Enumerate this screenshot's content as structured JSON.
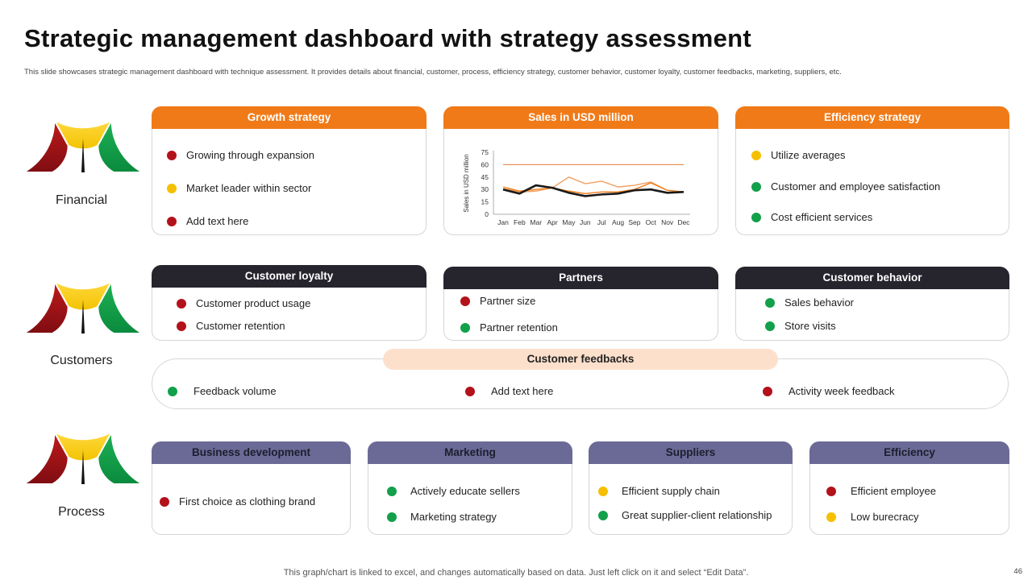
{
  "page": {
    "title": "Strategic management dashboard with strategy assessment",
    "subtitle": "This slide showcases strategic management dashboard with technique assessment. It provides details about financial, customer, process, efficiency strategy, customer behavior, customer loyalty, customer feedbacks, marketing, suppliers, etc.",
    "footer": "This graph/chart is linked to excel,  and changes automatically based on data. Just left click on it and select “Edit Data”.",
    "page_number": "46"
  },
  "colors": {
    "red": "#b3121b",
    "yellow": "#f5c000",
    "green": "#12a04a",
    "orange": "#f07a18",
    "dark": "#26252e",
    "purple": "#6b6a96"
  },
  "gauges": [
    {
      "label": "Financial"
    },
    {
      "label": "Customers"
    },
    {
      "label": "Process"
    }
  ],
  "growth_strategy": {
    "title": "Growth strategy",
    "items": [
      {
        "text": "Growing through expansion",
        "status": "red"
      },
      {
        "text": "Market leader within sector",
        "status": "yellow"
      },
      {
        "text": "Add text here",
        "status": "red"
      }
    ]
  },
  "sales": {
    "title": "Sales in USD million"
  },
  "efficiency_strategy": {
    "title": "Efficiency strategy",
    "items": [
      {
        "text": "Utilize averages",
        "status": "yellow"
      },
      {
        "text": "Customer and employee satisfaction",
        "status": "green"
      },
      {
        "text": "Cost efficient services",
        "status": "green"
      }
    ]
  },
  "customer_loyalty": {
    "title": "Customer loyalty",
    "items": [
      {
        "text": "Customer product usage",
        "status": "red"
      },
      {
        "text": "Customer retention",
        "status": "red"
      }
    ]
  },
  "partners": {
    "title": "Partners",
    "items": [
      {
        "text": "Partner size",
        "status": "red"
      },
      {
        "text": "Partner retention",
        "status": "green"
      }
    ]
  },
  "customer_behavior": {
    "title": "Customer behavior",
    "items": [
      {
        "text": "Sales behavior",
        "status": "green"
      },
      {
        "text": "Store visits",
        "status": "green"
      }
    ]
  },
  "customer_feedbacks": {
    "title": "Customer feedbacks",
    "items": [
      {
        "text": "Feedback volume",
        "status": "green"
      },
      {
        "text": "Add text here",
        "status": "red"
      },
      {
        "text": "Activity week feedback",
        "status": "red"
      }
    ]
  },
  "business_development": {
    "title": "Business development",
    "items": [
      {
        "text": "First choice as clothing brand",
        "status": "red"
      }
    ]
  },
  "marketing": {
    "title": "Marketing",
    "items": [
      {
        "text": "Actively educate sellers",
        "status": "green"
      },
      {
        "text": "Marketing strategy",
        "status": "green"
      }
    ]
  },
  "suppliers": {
    "title": "Suppliers",
    "items": [
      {
        "text": "Efficient supply chain",
        "status": "yellow"
      },
      {
        "text": "Great supplier-client relationship",
        "status": "green"
      }
    ]
  },
  "efficiency": {
    "title": "Efficiency",
    "items": [
      {
        "text": "Efficient employee",
        "status": "red"
      },
      {
        "text": "Low burecracy",
        "status": "yellow"
      }
    ]
  },
  "chart_data": {
    "type": "line",
    "title": "",
    "xlabel": "",
    "ylabel": "Sales in USD million",
    "categories": [
      "Jan",
      "Feb",
      "Mar",
      "Apr",
      "May",
      "Jun",
      "Jul",
      "Aug",
      "Sep",
      "Oct",
      "Nov",
      "Dec"
    ],
    "yticks": [
      0,
      15,
      30,
      45,
      60,
      75
    ],
    "ylim": [
      0,
      75
    ],
    "grid": false,
    "legend": "none",
    "series": [
      {
        "color": "#1a1a1a",
        "values": [
          30,
          25,
          35,
          32,
          26,
          22,
          24,
          25,
          29,
          30,
          26,
          27
        ]
      },
      {
        "color": "#f0a060",
        "values": [
          31,
          27,
          28,
          32,
          45,
          37,
          40,
          33,
          35,
          39,
          29,
          27
        ]
      },
      {
        "color": "#f07a18",
        "values": [
          33,
          28,
          30,
          32,
          28,
          25,
          27,
          27,
          30,
          38,
          29,
          27
        ]
      },
      {
        "color": "#e8935a",
        "values": [
          60,
          60,
          60,
          60,
          60,
          60,
          60,
          60,
          60,
          60,
          60,
          60
        ]
      }
    ]
  }
}
